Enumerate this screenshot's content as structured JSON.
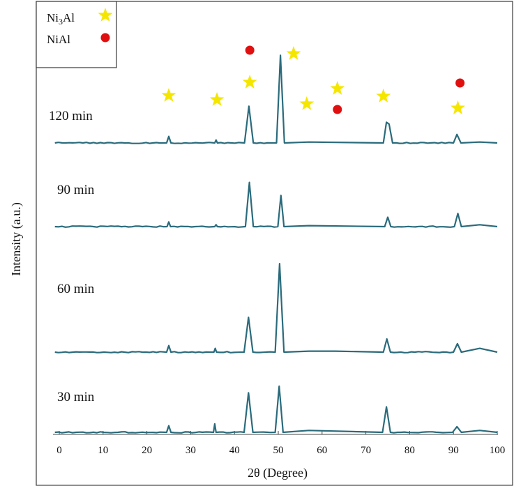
{
  "chart_data": {
    "type": "line",
    "xlabel": "2θ (Degree)",
    "ylabel": "Intensity (a.u.)",
    "xlim": [
      -2,
      100
    ],
    "x_ticks": [
      0,
      10,
      20,
      30,
      40,
      50,
      60,
      70,
      80,
      90,
      100
    ],
    "grid": false,
    "line_color": "#2a6b7c",
    "legend": {
      "position": "top-left",
      "entries": [
        {
          "label_prefix": "Ni",
          "sub1": "3",
          "label_suffix": "Al",
          "marker": "star",
          "color": "#f5e600"
        },
        {
          "label": "NiAl",
          "marker": "circle",
          "color": "#e01010"
        }
      ]
    },
    "series": [
      {
        "name": "120 min",
        "x": [
          -1,
          24.5,
          25,
          25.5,
          35.5,
          35.8,
          36.1,
          42.3,
          43.3,
          44.3,
          49.6,
          50.5,
          51.4,
          57,
          74,
          74.7,
          75.3,
          76.1,
          90,
          90.8,
          91.7,
          96,
          100
        ],
        "y": [
          0,
          0,
          0.07,
          0,
          0,
          0.03,
          0,
          0,
          0.39,
          0,
          0,
          0.93,
          0,
          0.01,
          0,
          0.22,
          0.2,
          0,
          0,
          0.09,
          0,
          0.01,
          0
        ]
      },
      {
        "name": "90 min",
        "x": [
          -1,
          24.6,
          25,
          25.4,
          35.5,
          35.8,
          36.1,
          42.5,
          43.4,
          44.3,
          49.9,
          50.6,
          51.3,
          57,
          74.3,
          75,
          75.7,
          90.2,
          91,
          91.8,
          96,
          100
        ],
        "y": [
          0,
          0,
          0.05,
          0,
          0,
          0.02,
          0,
          0,
          0.47,
          0,
          0,
          0.33,
          0,
          0.01,
          0,
          0.1,
          0,
          0,
          0.14,
          0,
          0.02,
          0
        ]
      },
      {
        "name": "60 min",
        "x": [
          -1,
          24.5,
          25,
          25.5,
          35.3,
          35.6,
          35.9,
          42.2,
          43.2,
          44.2,
          49.3,
          50.3,
          51.3,
          57,
          63,
          74,
          74.8,
          75.6,
          90,
          90.9,
          91.8,
          96,
          100
        ],
        "y": [
          0,
          0,
          0.07,
          0,
          0,
          0.04,
          0,
          0,
          0.37,
          0,
          0,
          0.94,
          0,
          0.01,
          0.01,
          0,
          0.14,
          0,
          0,
          0.09,
          0,
          0.04,
          0
        ]
      },
      {
        "name": "30 min",
        "x": [
          -1,
          24.5,
          25,
          25.5,
          35.2,
          35.5,
          35.8,
          42.2,
          43.2,
          44.2,
          49.3,
          50.2,
          51.1,
          57,
          73.8,
          74.7,
          75.6,
          89.8,
          90.8,
          91.8,
          96,
          100
        ],
        "y": [
          0,
          0,
          0.07,
          0,
          0,
          0.09,
          0,
          0,
          0.42,
          0,
          0,
          0.49,
          0,
          0.02,
          0,
          0.27,
          0,
          0,
          0.06,
          0,
          0.02,
          0
        ]
      }
    ],
    "annotations": {
      "stars_x": [
        25,
        36,
        43.5,
        53.5,
        56.5,
        63.5,
        74,
        91
      ],
      "circles_x": [
        43.5,
        63.5,
        91.5
      ]
    }
  }
}
